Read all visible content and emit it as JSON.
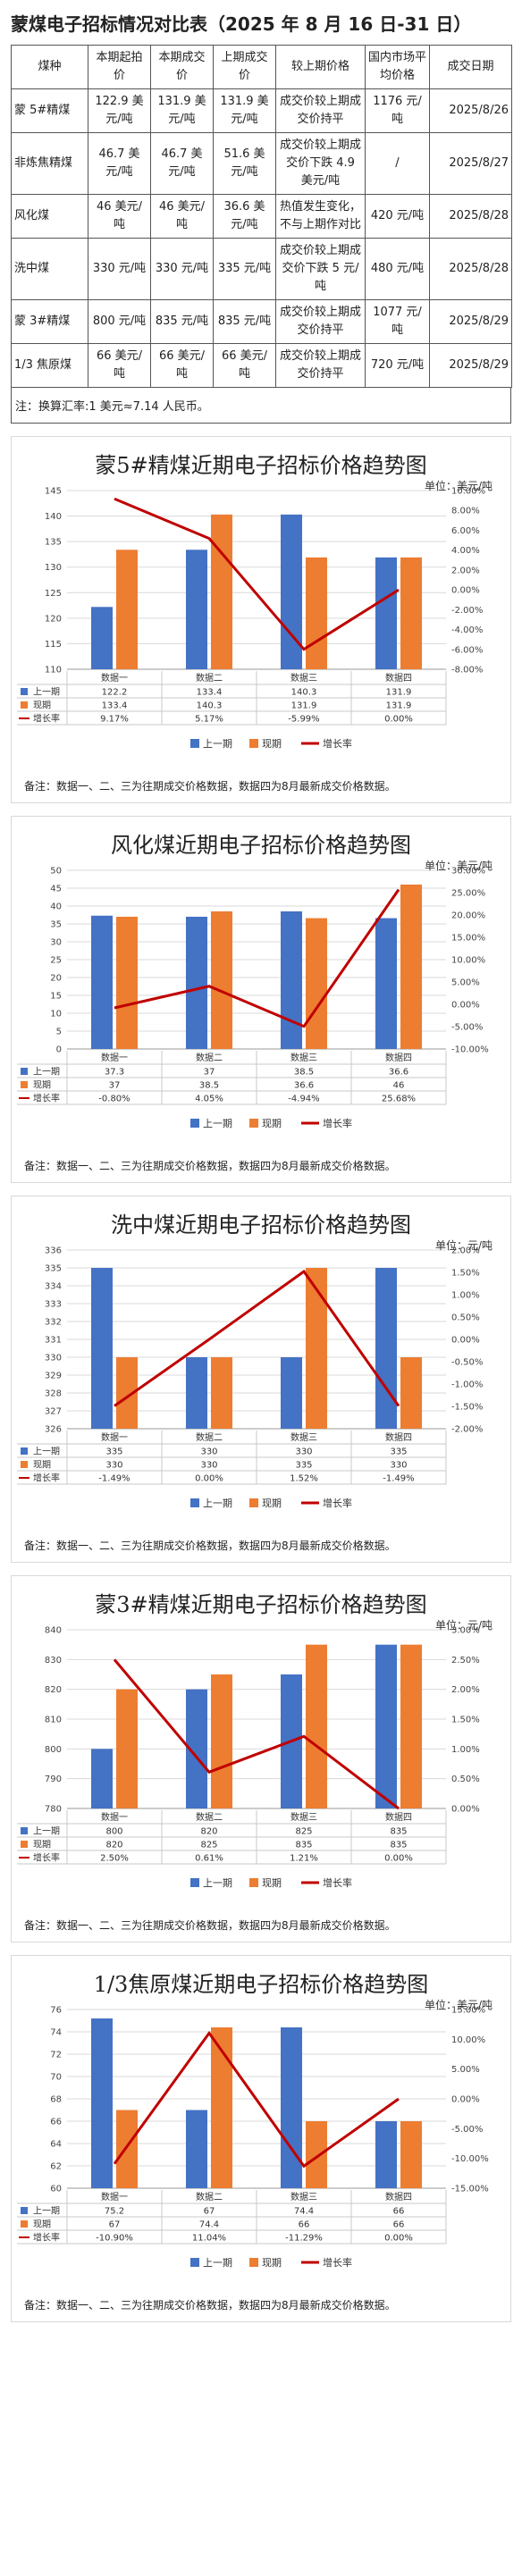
{
  "page_title": "蒙煤电子招标情况对比表（2025 年 8 月 16 日-31 日）",
  "table": {
    "headers": [
      "煤种",
      "本期起拍价",
      "本期成交价",
      "上期成交价",
      "较上期价格",
      "国内市场平均价格",
      "成交日期"
    ],
    "rows": [
      [
        "蒙 5#精煤",
        "122.9 美元/吨",
        "131.9 美元/吨",
        "131.9 美元/吨",
        "成交价较上期成交价持平",
        "1176 元/吨",
        "2025/8/26"
      ],
      [
        "非炼焦精煤",
        "46.7 美元/吨",
        "46.7 美元/吨",
        "51.6 美元/吨",
        "成交价较上期成交价下跌 4.9 美元/吨",
        "/",
        "2025/8/27"
      ],
      [
        "风化煤",
        "46 美元/吨",
        "46 美元/吨",
        "36.6 美元/吨",
        "热值发生变化，不与上期作对比",
        "420 元/吨",
        "2025/8/28"
      ],
      [
        "洗中煤",
        "330 元/吨",
        "330 元/吨",
        "335 元/吨",
        "成交价较上期成交价下跌 5 元/吨",
        "480 元/吨",
        "2025/8/28"
      ],
      [
        "蒙 3#精煤",
        "800 元/吨",
        "835 元/吨",
        "835 元/吨",
        "成交价较上期成交价持平",
        "1077 元/吨",
        "2025/8/29"
      ],
      [
        "1/3 焦原煤",
        "66 美元/吨",
        "66 美元/吨",
        "66 美元/吨",
        "成交价较上期成交价持平",
        "720 元/吨",
        "2025/8/29"
      ]
    ],
    "note": "注：换算汇率:1 美元≈7.14 人民币。"
  },
  "legend_labels": {
    "prev": "上一期",
    "curr": "现期",
    "growth": "增长率"
  },
  "colors": {
    "prev": "#4472c4",
    "curr": "#ed7d31",
    "growth": "#c00000",
    "grid": "#d9d9d9"
  },
  "chart_data": [
    {
      "type": "bar",
      "title": "蒙5#精煤近期电子招标价格趋势图",
      "unit": "单位：美元/吨",
      "categories": [
        "数据一",
        "数据二",
        "数据三",
        "数据四"
      ],
      "series": [
        {
          "name": "上一期",
          "values": [
            122.2,
            133.4,
            140.3,
            131.9
          ]
        },
        {
          "name": "现期",
          "values": [
            133.4,
            140.3,
            131.9,
            131.9
          ]
        }
      ],
      "growth": {
        "name": "增长率",
        "values": [
          9.17,
          5.17,
          -5.99,
          0.0
        ],
        "labels": [
          "9.17%",
          "5.17%",
          "-5.99%",
          "0.00%"
        ]
      },
      "prev_labels": [
        "122.2",
        "133.4",
        "140.3",
        "131.9"
      ],
      "curr_labels": [
        "133.4",
        "140.3",
        "131.9",
        "131.9"
      ],
      "ylim": [
        110,
        145
      ],
      "yticks": [
        110,
        115,
        120,
        125,
        130,
        135,
        140,
        145
      ],
      "y2lim": [
        -8,
        10
      ],
      "y2ticks": [
        -8,
        -6,
        -4,
        -2,
        0,
        2,
        4,
        6,
        8,
        10
      ],
      "y2tick_labels": [
        "-8.00%",
        "-6.00%",
        "-4.00%",
        "-2.00%",
        "0.00%",
        "2.00%",
        "4.00%",
        "6.00%",
        "8.00%",
        "10.00%"
      ],
      "note": "备注：数据一、二、三为往期成交价格数据，数据四为8月最新成交价格数据。"
    },
    {
      "type": "bar",
      "title": "风化煤近期电子招标价格趋势图",
      "unit": "单位：美元/吨",
      "categories": [
        "数据一",
        "数据二",
        "数据三",
        "数据四"
      ],
      "series": [
        {
          "name": "上一期",
          "values": [
            37.3,
            37,
            38.5,
            36.6
          ]
        },
        {
          "name": "现期",
          "values": [
            37,
            38.5,
            36.6,
            46
          ]
        }
      ],
      "growth": {
        "name": "增长率",
        "values": [
          -0.8,
          4.05,
          -4.94,
          25.68
        ],
        "labels": [
          "-0.80%",
          "4.05%",
          "-4.94%",
          "25.68%"
        ]
      },
      "prev_labels": [
        "37.3",
        "37",
        "38.5",
        "36.6"
      ],
      "curr_labels": [
        "37",
        "38.5",
        "36.6",
        "46"
      ],
      "ylim": [
        0,
        50
      ],
      "yticks": [
        0,
        5,
        10,
        15,
        20,
        25,
        30,
        35,
        40,
        45,
        50
      ],
      "y2lim": [
        -10,
        30
      ],
      "y2ticks": [
        -10,
        -5,
        0,
        5,
        10,
        15,
        20,
        25,
        30
      ],
      "y2tick_labels": [
        "-10.00%",
        "-5.00%",
        "0.00%",
        "5.00%",
        "10.00%",
        "15.00%",
        "20.00%",
        "25.00%",
        "30.00%"
      ],
      "note": "备注：数据一、二、三为往期成交价格数据，数据四为8月最新成交价格数据。"
    },
    {
      "type": "bar",
      "title": "洗中煤近期电子招标价格趋势图",
      "unit": "单位：元/吨",
      "categories": [
        "数据一",
        "数据二",
        "数据三",
        "数据四"
      ],
      "series": [
        {
          "name": "上一期",
          "values": [
            335,
            330,
            330,
            335
          ]
        },
        {
          "name": "现期",
          "values": [
            330,
            330,
            335,
            330
          ]
        }
      ],
      "growth": {
        "name": "增长率",
        "values": [
          -1.49,
          0.0,
          1.52,
          -1.49
        ],
        "labels": [
          "-1.49%",
          "0.00%",
          "1.52%",
          "-1.49%"
        ]
      },
      "prev_labels": [
        "335",
        "330",
        "330",
        "335"
      ],
      "curr_labels": [
        "330",
        "330",
        "335",
        "330"
      ],
      "ylim": [
        326,
        336
      ],
      "yticks": [
        326,
        327,
        328,
        329,
        330,
        331,
        332,
        333,
        334,
        335,
        336
      ],
      "y2lim": [
        -2,
        2
      ],
      "y2ticks": [
        -2,
        -1.5,
        -1,
        -0.5,
        0,
        0.5,
        1,
        1.5,
        2
      ],
      "y2tick_labels": [
        "-2.00%",
        "-1.50%",
        "-1.00%",
        "-0.50%",
        "0.00%",
        "0.50%",
        "1.00%",
        "1.50%",
        "2.00%"
      ],
      "note": "备注：数据一、二、三为往期成交价格数据，数据四为8月最新成交价格数据。"
    },
    {
      "type": "bar",
      "title": "蒙3#精煤近期电子招标价格趋势图",
      "unit": "单位：元/吨",
      "categories": [
        "数据一",
        "数据二",
        "数据三",
        "数据四"
      ],
      "series": [
        {
          "name": "上一期",
          "values": [
            800,
            820,
            825,
            835
          ]
        },
        {
          "name": "现期",
          "values": [
            820,
            825,
            835,
            835
          ]
        }
      ],
      "growth": {
        "name": "增长率",
        "values": [
          2.5,
          0.61,
          1.21,
          0.0
        ],
        "labels": [
          "2.50%",
          "0.61%",
          "1.21%",
          "0.00%"
        ]
      },
      "prev_labels": [
        "800",
        "820",
        "825",
        "835"
      ],
      "curr_labels": [
        "820",
        "825",
        "835",
        "835"
      ],
      "ylim": [
        780,
        840
      ],
      "yticks": [
        780,
        790,
        800,
        810,
        820,
        830,
        840
      ],
      "y2lim": [
        0,
        3
      ],
      "y2ticks": [
        0,
        0.5,
        1,
        1.5,
        2,
        2.5,
        3
      ],
      "y2tick_labels": [
        "0.00%",
        "0.50%",
        "1.00%",
        "1.50%",
        "2.00%",
        "2.50%",
        "3.00%"
      ],
      "note": "备注：数据一、二、三为往期成交价格数据，数据四为8月最新成交价格数据。"
    },
    {
      "type": "bar",
      "title": "1/3焦原煤近期电子招标价格趋势图",
      "unit": "单位：美元/吨",
      "categories": [
        "数据一",
        "数据二",
        "数据三",
        "数据四"
      ],
      "series": [
        {
          "name": "上一期",
          "values": [
            75.2,
            67,
            74.4,
            66
          ]
        },
        {
          "name": "现期",
          "values": [
            67,
            74.4,
            66,
            66
          ]
        }
      ],
      "growth": {
        "name": "增长率",
        "values": [
          -10.9,
          11.04,
          -11.29,
          0.0
        ],
        "labels": [
          "-10.90%",
          "11.04%",
          "-11.29%",
          "0.00%"
        ]
      },
      "prev_labels": [
        "75.2",
        "67",
        "74.4",
        "66"
      ],
      "curr_labels": [
        "67",
        "74.4",
        "66",
        "66"
      ],
      "ylim": [
        60,
        76
      ],
      "yticks": [
        60,
        62,
        64,
        66,
        68,
        70,
        72,
        74,
        76
      ],
      "y2lim": [
        -15,
        15
      ],
      "y2ticks": [
        -15,
        -10,
        -5,
        0,
        5,
        10,
        15
      ],
      "y2tick_labels": [
        "-15.00%",
        "-10.00%",
        "-5.00%",
        "0.00%",
        "5.00%",
        "10.00%",
        "15.00%"
      ],
      "note": "备注：数据一、二、三为往期成交价格数据，数据四为8月最新成交价格数据。"
    }
  ]
}
